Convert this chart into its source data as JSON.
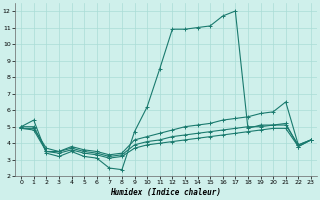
{
  "xlabel": "Humidex (Indice chaleur)",
  "line_color": "#1a7a6e",
  "bg_color": "#cff0eb",
  "grid_color": "#aaddd6",
  "lines": [
    {
      "x": [
        0,
        1,
        2,
        3,
        4,
        5,
        6,
        7,
        8,
        9,
        10,
        11,
        12,
        13,
        14,
        15,
        16,
        17,
        18,
        19,
        20,
        21,
        22,
        23
      ],
      "y": [
        5.0,
        5.4,
        3.4,
        3.2,
        3.5,
        3.2,
        3.1,
        2.5,
        2.4,
        4.7,
        6.2,
        8.5,
        10.9,
        10.9,
        11.0,
        11.1,
        11.7,
        12.0,
        4.9,
        5.1,
        5.1,
        5.2,
        3.8,
        4.2
      ]
    },
    {
      "x": [
        0,
        1,
        2,
        3,
        4,
        5,
        6,
        7,
        8,
        9,
        10,
        11,
        12,
        13,
        14,
        15,
        16,
        17,
        18,
        19,
        20,
        21,
        22,
        23
      ],
      "y": [
        5.0,
        5.0,
        3.5,
        3.5,
        3.8,
        3.6,
        3.5,
        3.3,
        3.4,
        4.2,
        4.4,
        4.6,
        4.8,
        5.0,
        5.1,
        5.2,
        5.4,
        5.5,
        5.6,
        5.8,
        5.9,
        6.5,
        3.9,
        4.2
      ]
    },
    {
      "x": [
        0,
        1,
        2,
        3,
        4,
        5,
        6,
        7,
        8,
        9,
        10,
        11,
        12,
        13,
        14,
        15,
        16,
        17,
        18,
        19,
        20,
        21,
        22,
        23
      ],
      "y": [
        4.9,
        4.9,
        3.7,
        3.5,
        3.7,
        3.5,
        3.4,
        3.2,
        3.3,
        3.9,
        4.1,
        4.2,
        4.4,
        4.5,
        4.6,
        4.7,
        4.8,
        4.9,
        5.0,
        5.0,
        5.1,
        5.1,
        3.9,
        4.2
      ]
    },
    {
      "x": [
        0,
        1,
        2,
        3,
        4,
        5,
        6,
        7,
        8,
        9,
        10,
        11,
        12,
        13,
        14,
        15,
        16,
        17,
        18,
        19,
        20,
        21,
        22,
        23
      ],
      "y": [
        4.9,
        4.8,
        3.5,
        3.4,
        3.6,
        3.4,
        3.3,
        3.1,
        3.2,
        3.7,
        3.9,
        4.0,
        4.1,
        4.2,
        4.3,
        4.4,
        4.5,
        4.6,
        4.7,
        4.8,
        4.9,
        4.9,
        3.8,
        4.2
      ]
    }
  ],
  "ylim": [
    2,
    12.5
  ],
  "xlim": [
    -0.5,
    23.5
  ],
  "yticks": [
    2,
    3,
    4,
    5,
    6,
    7,
    8,
    9,
    10,
    11,
    12
  ],
  "xticks": [
    0,
    1,
    2,
    3,
    4,
    5,
    6,
    7,
    8,
    9,
    10,
    11,
    12,
    13,
    14,
    15,
    16,
    17,
    18,
    19,
    20,
    21,
    22,
    23
  ]
}
